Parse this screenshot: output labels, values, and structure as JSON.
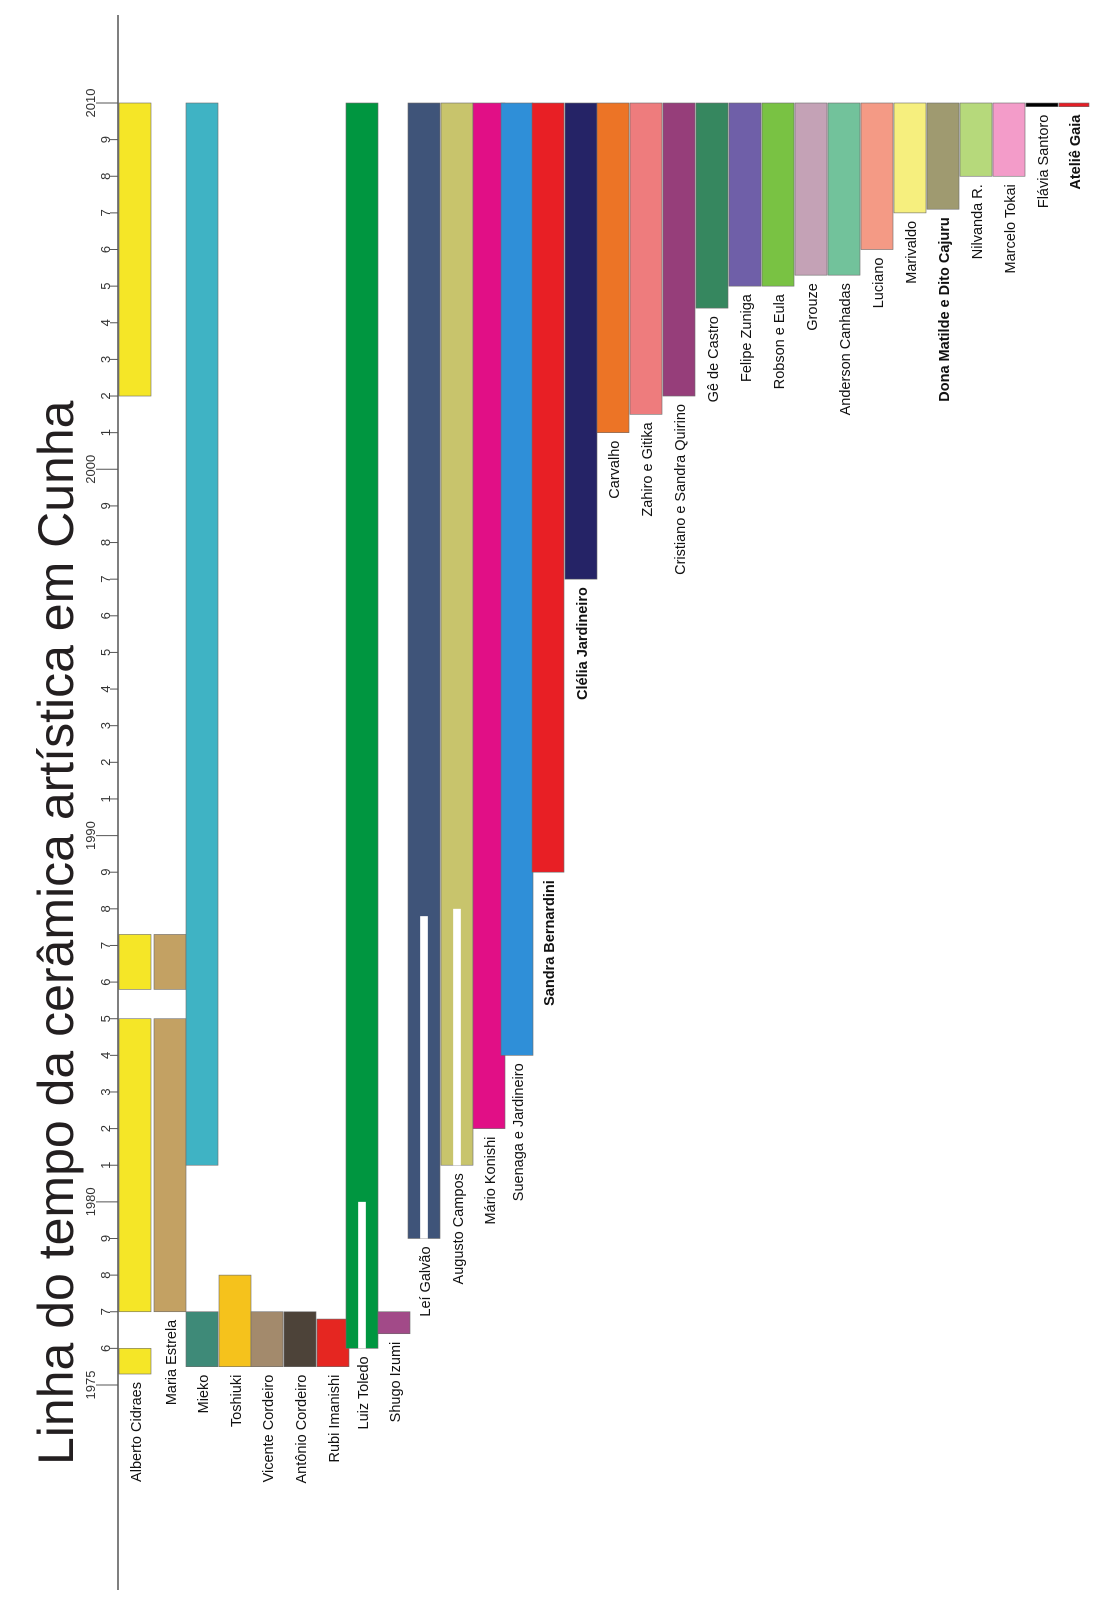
{
  "chart_data": {
    "type": "bar",
    "orientation": "vertical time axis, rotated labels",
    "title": "Linha do tempo da cerâmica artística em Cunha",
    "time_axis": {
      "min": 1975,
      "max": 2010,
      "major_labels": [
        "1975",
        "1980",
        "1990",
        "2000",
        "2010"
      ],
      "tick_labels": [
        {
          "year": 1975,
          "label": "1975"
        },
        {
          "year": 1976,
          "label": "6"
        },
        {
          "year": 1977,
          "label": "7"
        },
        {
          "year": 1978,
          "label": "8"
        },
        {
          "year": 1979,
          "label": "9"
        },
        {
          "year": 1980,
          "label": "1980"
        },
        {
          "year": 1981,
          "label": "1"
        },
        {
          "year": 1982,
          "label": "2"
        },
        {
          "year": 1983,
          "label": "3"
        },
        {
          "year": 1984,
          "label": "4"
        },
        {
          "year": 1985,
          "label": "5"
        },
        {
          "year": 1986,
          "label": "6"
        },
        {
          "year": 1987,
          "label": "7"
        },
        {
          "year": 1988,
          "label": "8"
        },
        {
          "year": 1989,
          "label": "9"
        },
        {
          "year": 1990,
          "label": "1990"
        },
        {
          "year": 1991,
          "label": "1"
        },
        {
          "year": 1992,
          "label": "2"
        },
        {
          "year": 1993,
          "label": "3"
        },
        {
          "year": 1994,
          "label": "4"
        },
        {
          "year": 1995,
          "label": "5"
        },
        {
          "year": 1996,
          "label": "6"
        },
        {
          "year": 1997,
          "label": "7"
        },
        {
          "year": 1998,
          "label": "8"
        },
        {
          "year": 1999,
          "label": "9"
        },
        {
          "year": 2000,
          "label": "2000"
        },
        {
          "year": 2001,
          "label": "1"
        },
        {
          "year": 2002,
          "label": "2"
        },
        {
          "year": 2003,
          "label": "3"
        },
        {
          "year": 2004,
          "label": "4"
        },
        {
          "year": 2005,
          "label": "5"
        },
        {
          "year": 2006,
          "label": "6"
        },
        {
          "year": 2007,
          "label": "7"
        },
        {
          "year": 2008,
          "label": "8"
        },
        {
          "year": 2009,
          "label": "9"
        },
        {
          "year": 2010,
          "label": "2010"
        }
      ]
    },
    "series": [
      {
        "name": "Alberto Cidraes",
        "color": "#f5e627",
        "bold": false,
        "periods": [
          [
            1975.3,
            1976.0
          ],
          [
            1977.0,
            1985.0
          ],
          [
            1985.8,
            1987.3
          ],
          [
            2002.0,
            2010.0
          ]
        ]
      },
      {
        "name": "Maria Estrela",
        "color": "#c3a163",
        "bold": false,
        "periods": [
          [
            1977.0,
            1985.0
          ],
          [
            1985.8,
            1987.3
          ]
        ]
      },
      {
        "name": "Mieko",
        "color": "#3fb3c4",
        "bold": false,
        "periods": [
          [
            1981.0,
            2010.0
          ]
        ],
        "prefix_periods": [
          [
            1975.5,
            1977.0
          ]
        ],
        "prefix_color": "#3e8a78"
      },
      {
        "name": "Toshiuki",
        "color": "#f5c21c",
        "bold": false,
        "periods": [
          [
            1975.5,
            1978.0
          ]
        ]
      },
      {
        "name": "Vicente Cordeiro",
        "color": "#a38a6c",
        "bold": false,
        "periods": [
          [
            1975.5,
            1977.0
          ]
        ]
      },
      {
        "name": "Antônio Cordeiro",
        "color": "#4d4339",
        "bold": false,
        "periods": [
          [
            1975.5,
            1977.0
          ]
        ]
      },
      {
        "name": "Rubi Imanishi",
        "color": "#e52621",
        "bold": false,
        "periods": [
          [
            1975.5,
            1976.8
          ]
        ]
      },
      {
        "name": "Luiz Toledo",
        "color": "#009640",
        "bold": false,
        "periods": [
          [
            1976.0,
            2010.0
          ]
        ],
        "gaps": [
          [
            1976.0,
            1980.0
          ]
        ]
      },
      {
        "name": "Shugo Izumi",
        "color": "#a24a88",
        "bold": false,
        "periods": [
          [
            1976.4,
            1977.0
          ]
        ]
      },
      {
        "name": "Leí Galvão",
        "color": "#3f5479",
        "bold": false,
        "periods": [
          [
            1979.0,
            2010.0
          ]
        ],
        "gaps": [
          [
            1979.0,
            1987.8
          ]
        ]
      },
      {
        "name": "Augusto Campos",
        "color": "#c8c46c",
        "bold": false,
        "periods": [
          [
            1981.0,
            2010.0
          ]
        ],
        "gaps": [
          [
            1981.0,
            1988.0
          ]
        ]
      },
      {
        "name": "Mário Konishi",
        "color": "#e10f86",
        "bold": false,
        "periods": [
          [
            1982.0,
            2010.0
          ]
        ]
      },
      {
        "name": "Suenaga e Jardineiro",
        "color": "#2f8fd8",
        "bold": false,
        "periods": [
          [
            1984.0,
            2010.0
          ]
        ]
      },
      {
        "name": "Sandra Bernardini",
        "color": "#e81f25",
        "bold": true,
        "periods": [
          [
            1989.0,
            2010.0
          ]
        ]
      },
      {
        "name": "Clélia Jardineiro",
        "color": "#252366",
        "bold": true,
        "periods": [
          [
            1997.0,
            2010.0
          ]
        ]
      },
      {
        "name": "Carvalho",
        "color": "#ec7426",
        "bold": false,
        "periods": [
          [
            2001.0,
            2010.0
          ]
        ]
      },
      {
        "name": "Zahiro e Gitika",
        "color": "#ee7c7d",
        "bold": false,
        "periods": [
          [
            2001.5,
            2010.0
          ]
        ]
      },
      {
        "name": "Cristiano e Sandra Quirino",
        "color": "#963e7a",
        "bold": false,
        "periods": [
          [
            2002.0,
            2010.0
          ]
        ]
      },
      {
        "name": "Gê de Castro",
        "color": "#36875f",
        "bold": false,
        "periods": [
          [
            2004.4,
            2010.0
          ]
        ]
      },
      {
        "name": "Felipe Zuniga",
        "color": "#6f5fa8",
        "bold": false,
        "periods": [
          [
            2005.0,
            2010.0
          ]
        ]
      },
      {
        "name": "Robson e Eula",
        "color": "#79c243",
        "bold": false,
        "periods": [
          [
            2005.0,
            2010.0
          ]
        ]
      },
      {
        "name": "Grouze",
        "color": "#c4a2b6",
        "bold": false,
        "periods": [
          [
            2005.3,
            2010.0
          ]
        ]
      },
      {
        "name": "Anderson Canhadas",
        "color": "#72c29b",
        "bold": false,
        "periods": [
          [
            2005.3,
            2010.0
          ]
        ]
      },
      {
        "name": "Luciano",
        "color": "#f49a85",
        "bold": false,
        "periods": [
          [
            2006.0,
            2010.0
          ]
        ]
      },
      {
        "name": "Marivaldo",
        "color": "#f6ef7e",
        "bold": false,
        "periods": [
          [
            2007.0,
            2010.0
          ]
        ]
      },
      {
        "name": "Dona Matilde e Dito Cajuru",
        "color": "#9f9a70",
        "bold": true,
        "periods": [
          [
            2007.1,
            2010.0
          ]
        ]
      },
      {
        "name": "Nilvanda R.",
        "color": "#b6d97b",
        "bold": false,
        "periods": [
          [
            2008.0,
            2010.0
          ]
        ]
      },
      {
        "name": "Marcelo Tokai",
        "color": "#f39cc9",
        "bold": false,
        "periods": [
          [
            2008.0,
            2010.0
          ]
        ]
      },
      {
        "name": "Flávia Santoro",
        "color": "#000000",
        "bold": false,
        "periods": [
          [
            2009.9,
            2010.0
          ]
        ]
      },
      {
        "name": "Ateliê Gaia",
        "color": "#e41e26",
        "bold": true,
        "periods": [
          [
            2009.9,
            2010.0
          ]
        ]
      }
    ]
  }
}
